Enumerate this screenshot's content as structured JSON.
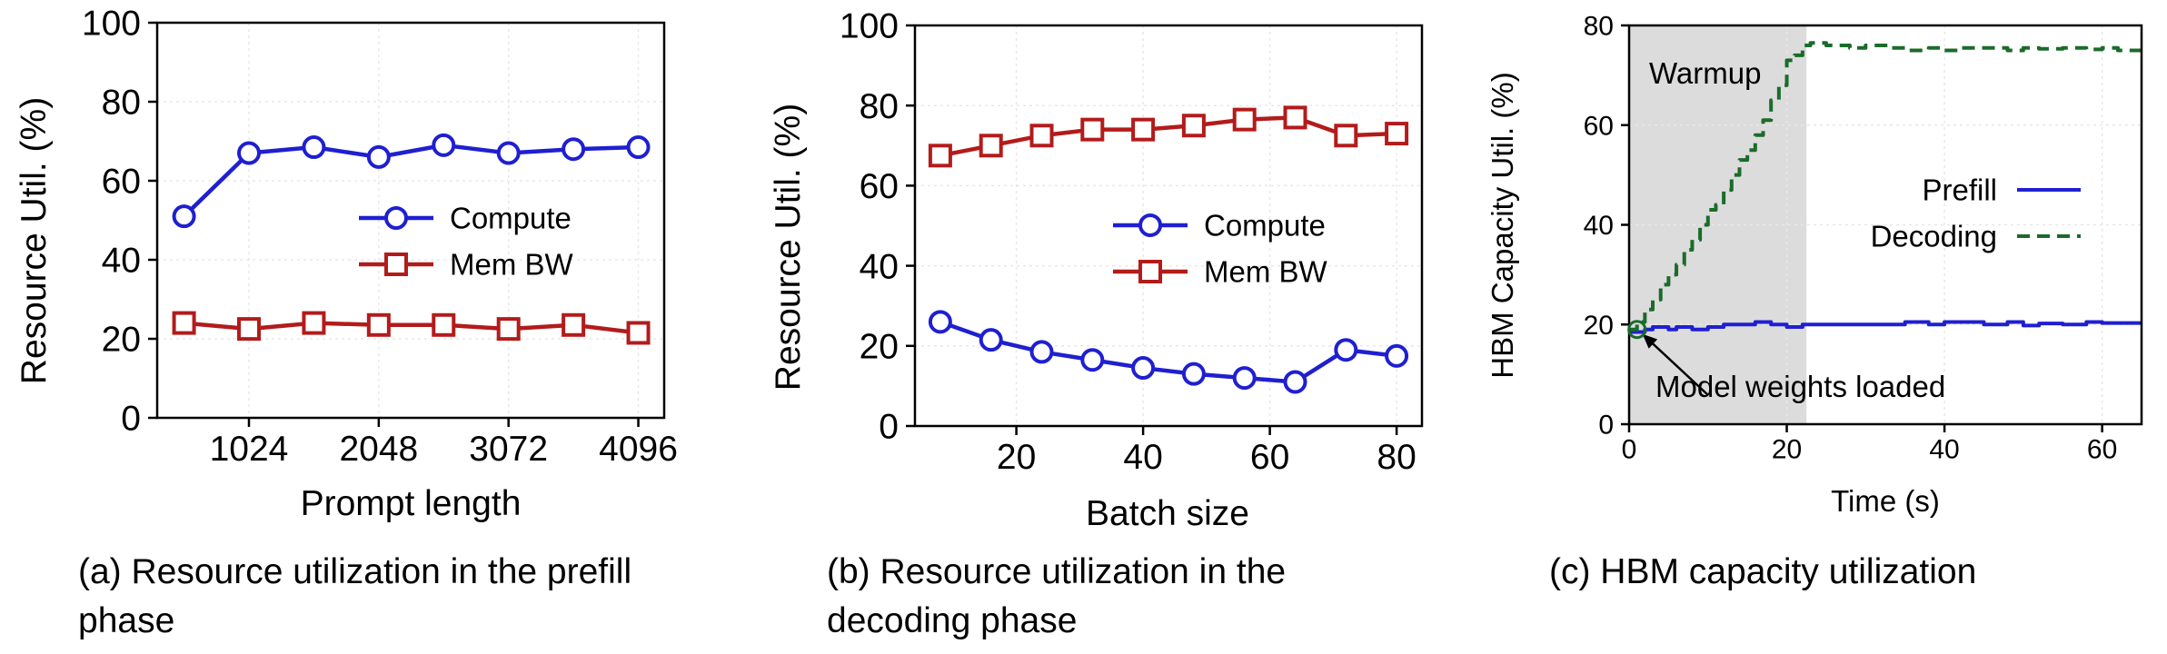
{
  "colors": {
    "compute": "#1f1fd1",
    "memory": "#b31b1b",
    "prefill": "#1f1fd1",
    "decoding": "#1b6b2a",
    "warmup_band": "#dcdcdc",
    "axis": "#000000",
    "grid": "#e8e8e8"
  },
  "captions": {
    "a": "(a) Resource utilization in the prefill phase",
    "b": "(b) Resource utilization in the decoding phase",
    "c": "(c) HBM capacity utilization"
  },
  "chart_data": [
    {
      "id": "a",
      "type": "line",
      "xlabel": "Prompt length",
      "ylabel": "Resource Util. (%)",
      "xlim": [
        300,
        4300
      ],
      "ylim": [
        0,
        100
      ],
      "xticks": [
        1024,
        2048,
        3072,
        4096
      ],
      "yticks": [
        0,
        20,
        40,
        60,
        80,
        100
      ],
      "grid": true,
      "legend_position": "center-right",
      "x": [
        512,
        1024,
        1536,
        2048,
        2560,
        3072,
        3584,
        4096
      ],
      "series": [
        {
          "name": "Compute",
          "marker": "circle",
          "color_key": "compute",
          "values": [
            51,
            67,
            68.5,
            66,
            69,
            67,
            68,
            68.5
          ]
        },
        {
          "name": "Mem BW",
          "marker": "square",
          "color_key": "memory",
          "values": [
            24,
            22.5,
            24,
            23.5,
            23.5,
            22.5,
            23.5,
            21.5
          ]
        }
      ]
    },
    {
      "id": "b",
      "type": "line",
      "xlabel": "Batch size",
      "ylabel": "Resource Util. (%)",
      "xlim": [
        4,
        84
      ],
      "ylim": [
        0,
        100
      ],
      "xticks": [
        20,
        40,
        60,
        80
      ],
      "yticks": [
        0,
        20,
        40,
        60,
        80,
        100
      ],
      "grid": true,
      "legend_position": "center-right",
      "x": [
        8,
        16,
        24,
        32,
        40,
        48,
        56,
        64,
        72,
        80
      ],
      "series": [
        {
          "name": "Compute",
          "marker": "circle",
          "color_key": "compute",
          "values": [
            26,
            21.5,
            18.5,
            16.5,
            14.5,
            13,
            12,
            11,
            19,
            17.5
          ]
        },
        {
          "name": "Mem BW",
          "marker": "square",
          "color_key": "memory",
          "values": [
            67.5,
            70,
            72.5,
            74,
            74,
            75,
            76.5,
            77,
            72.5,
            73
          ]
        }
      ]
    },
    {
      "id": "c",
      "type": "line",
      "xlabel": "Time (s)",
      "ylabel": "HBM Capacity Util. (%)",
      "xlim": [
        0,
        65
      ],
      "ylim": [
        0,
        80
      ],
      "xticks": [
        0,
        20,
        40,
        60
      ],
      "yticks": [
        0,
        20,
        40,
        60,
        80
      ],
      "grid": true,
      "legend_position": "center-right",
      "shaded_region": {
        "label": "Warmup",
        "x_start": 0,
        "x_end": 22.5
      },
      "annotation": {
        "text": "Model weights loaded",
        "x": 1,
        "y": 19
      },
      "series": [
        {
          "name": "Prefill",
          "style": "solid-step",
          "color_key": "prefill",
          "x": [
            0,
            2,
            3,
            5,
            6,
            8,
            10,
            12,
            14,
            16,
            18,
            20,
            22,
            30,
            35,
            38,
            40,
            45,
            48,
            50,
            52,
            55,
            58,
            60,
            65
          ],
          "values": [
            18.5,
            19,
            19.5,
            19,
            19.5,
            19,
            19.5,
            20,
            20,
            20.5,
            20,
            19.5,
            20,
            20,
            20.5,
            20,
            20.5,
            20,
            20.5,
            19.8,
            20.2,
            20,
            20.5,
            20.3,
            20.5
          ]
        },
        {
          "name": "Decoding",
          "style": "dashed-step",
          "color_key": "decoding",
          "x": [
            0,
            1,
            2,
            3,
            4,
            5,
            6,
            7,
            8,
            9,
            10,
            11,
            12,
            13,
            14,
            15,
            16,
            17,
            18,
            19,
            20,
            21,
            22,
            23,
            25,
            28,
            30,
            33,
            35,
            38,
            40,
            42,
            45,
            48,
            50,
            52,
            55,
            58,
            60,
            62,
            65
          ],
          "values": [
            19,
            20.5,
            23,
            25,
            28,
            30,
            32,
            35,
            37,
            40,
            43,
            44,
            47,
            50,
            53,
            55,
            58,
            61,
            65,
            68,
            73,
            74,
            76,
            76.5,
            76,
            75.5,
            76,
            75.5,
            75,
            75.5,
            75,
            75.5,
            75.5,
            75,
            75.5,
            75.3,
            75.5,
            75.2,
            75.5,
            75,
            75.5
          ]
        }
      ]
    }
  ]
}
